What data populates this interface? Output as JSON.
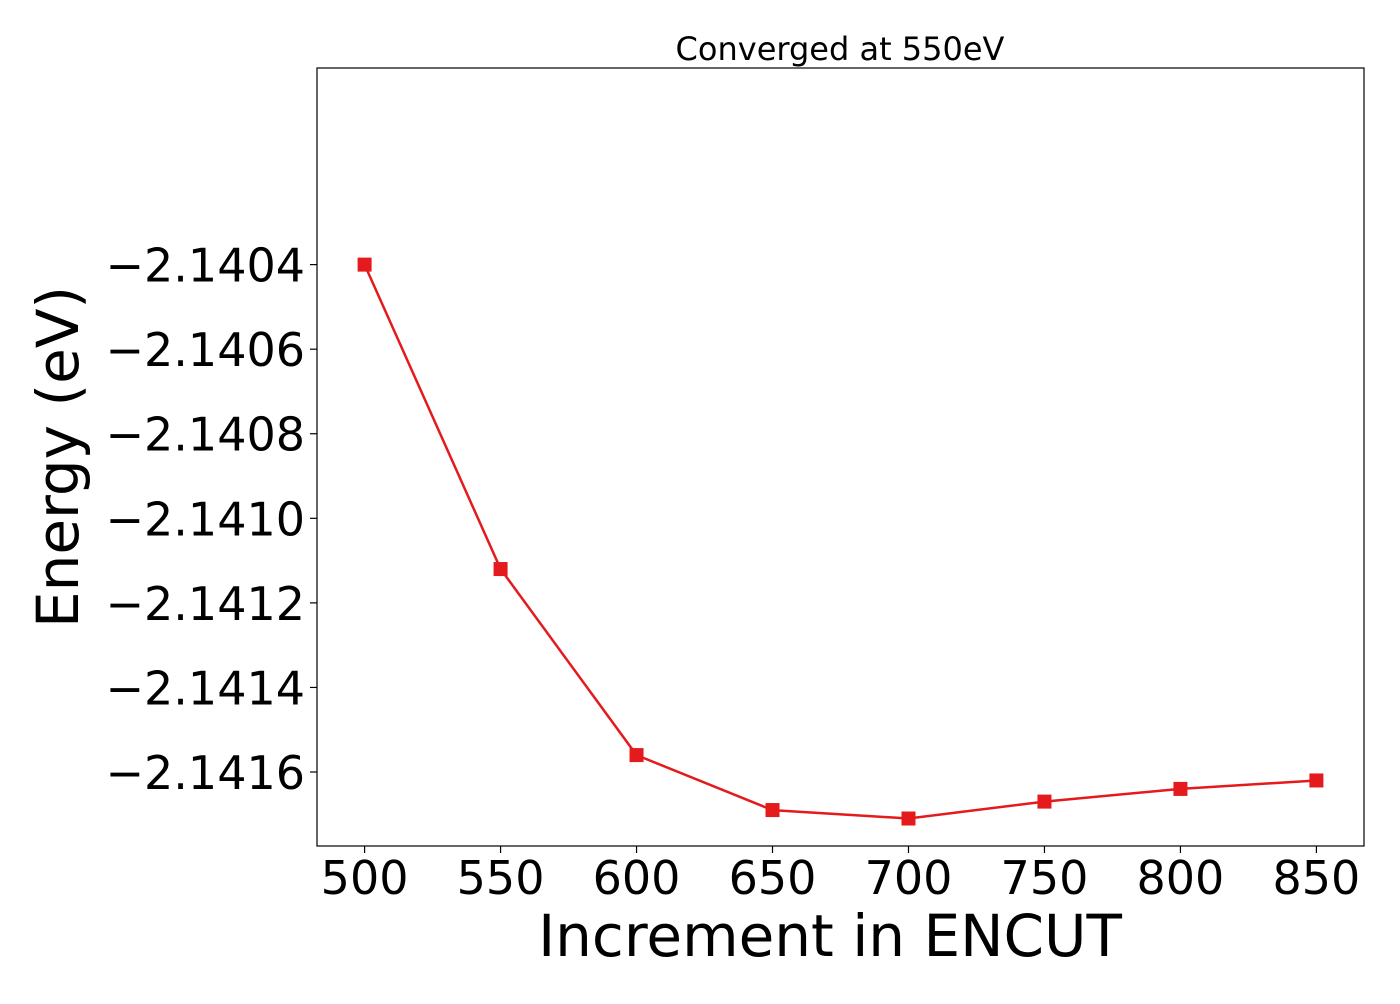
{
  "chart_data": {
    "type": "line",
    "title": "Converged at 550eV",
    "xlabel": "Increment in ENCUT",
    "ylabel": "Energy (eV)",
    "x": [
      500,
      550,
      600,
      650,
      700,
      750,
      800,
      850
    ],
    "series": [
      {
        "values": [
          -2.1404,
          -2.14112,
          -2.14156,
          -2.14169,
          -2.14171,
          -2.14167,
          -2.14164,
          -2.14162
        ],
        "color": "#e41a1c",
        "marker": "square"
      }
    ],
    "xticks": [
      500,
      550,
      600,
      650,
      700,
      750,
      800,
      850
    ],
    "xtick_labels": [
      "500",
      "550",
      "600",
      "650",
      "700",
      "750",
      "800",
      "850"
    ],
    "yticks": [
      -2.1404,
      -2.1406,
      -2.1408,
      -2.141,
      -2.1412,
      -2.1414,
      -2.1416
    ],
    "ytick_labels": [
      "−2.1404",
      "−2.1406",
      "−2.1408",
      "−2.1410",
      "−2.1412",
      "−2.1414",
      "−2.1416"
    ],
    "xlim": [
      482.5,
      867.5
    ],
    "ylim": [
      -2.141775,
      -2.139935
    ],
    "grid": false,
    "legend": "none"
  }
}
